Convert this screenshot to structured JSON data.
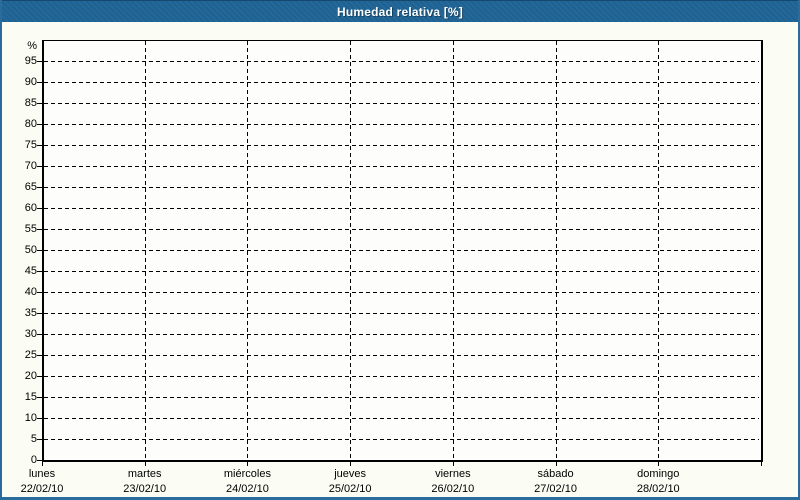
{
  "window": {
    "title": "Humedad relativa [%]"
  },
  "colors": {
    "titlebar_bg": "#1f6394",
    "titlebar_text": "#ffffff",
    "frame_border": "#2a6d9c",
    "page_bg": "#fbfdf4",
    "plot_bg": "#fdfefb",
    "axis": "#000000",
    "grid": "#000000",
    "label_text": "#000000"
  },
  "chart_data": {
    "type": "line",
    "title": "Humedad relativa [%]",
    "unit_label": "%",
    "ylim": [
      0,
      100
    ],
    "ytick_step": 5,
    "yticks": [
      0,
      5,
      10,
      15,
      20,
      25,
      30,
      35,
      40,
      45,
      50,
      55,
      60,
      65,
      70,
      75,
      80,
      85,
      90,
      95
    ],
    "grid": "dashed",
    "legend": "none",
    "series": [],
    "x_categories": [
      {
        "day": "lunes",
        "date": "22/02/10"
      },
      {
        "day": "martes",
        "date": "23/02/10"
      },
      {
        "day": "miércoles",
        "date": "24/02/10"
      },
      {
        "day": "jueves",
        "date": "25/02/10"
      },
      {
        "day": "viernes",
        "date": "26/02/10"
      },
      {
        "day": "sábado",
        "date": "27/02/10"
      },
      {
        "day": "domingo",
        "date": "28/02/10"
      }
    ]
  }
}
